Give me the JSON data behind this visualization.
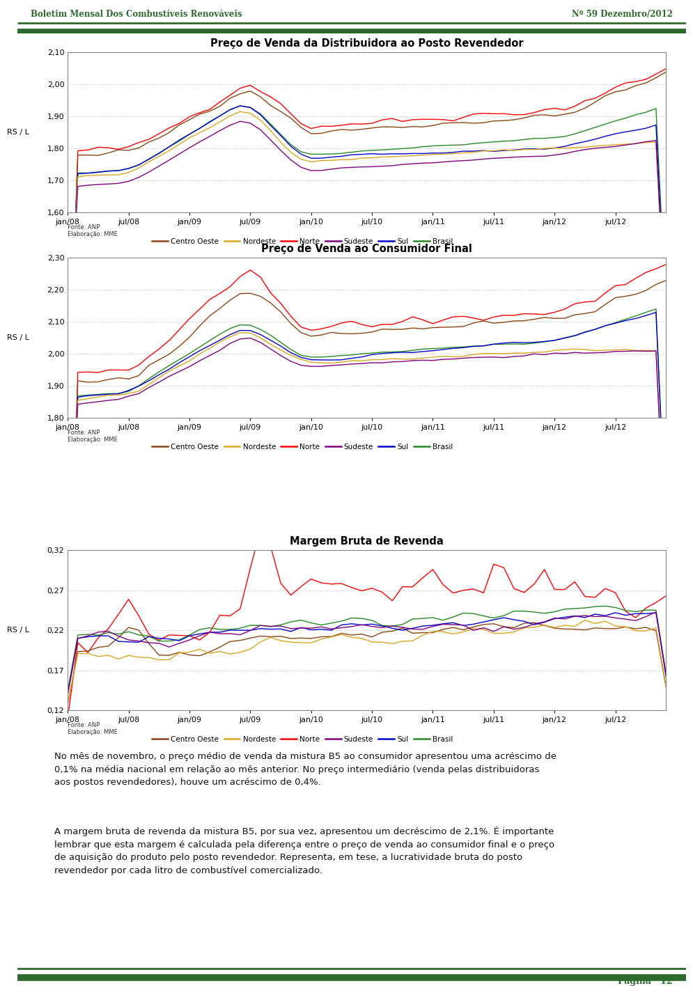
{
  "page_title_left": "Boletim Mensal Dos Combustíveis Renováveis",
  "page_title_right": "Nº 59 Dezembro/2012",
  "header_color": "#2d6a2d",
  "chart1_title": "Preço de Venda da Distribuidora ao Posto Revendedor",
  "chart2_title": "Preço de Venda ao Consumidor Final",
  "chart3_title": "Margem Bruta de Revenda",
  "ylabel": "RS / L",
  "chart1_ylim": [
    1.6,
    2.1
  ],
  "chart1_yticks": [
    1.6,
    1.7,
    1.8,
    1.9,
    2.0,
    2.1
  ],
  "chart2_ylim": [
    1.8,
    2.3
  ],
  "chart2_yticks": [
    1.8,
    1.9,
    2.0,
    2.1,
    2.2,
    2.3
  ],
  "chart3_ylim": [
    0.12,
    0.32
  ],
  "chart3_yticks": [
    0.12,
    0.17,
    0.22,
    0.27,
    0.32
  ],
  "xtick_labels": [
    "jan/08",
    "jul/08",
    "jan/09",
    "jul/09",
    "jan/10",
    "jul/10",
    "jan/11",
    "jul/11",
    "jan/12",
    "jul/12"
  ],
  "legend_labels": [
    "Centro Oeste",
    "Nordeste",
    "Norte",
    "Sudeste",
    "Sul",
    "Brasil"
  ],
  "legend_colors": [
    "#8B4513",
    "#DAA520",
    "#FF0000",
    "#800080",
    "#0000CD",
    "#228B22"
  ],
  "fonte_text": "Fonte: ANP\nElaboração: MME",
  "body_para1": "No mês de novembro, o preço médio de venda da mistura B5 ao consumidor apresentou uma acréscimo de 0,1% na média nacional em relação ao mês anterior. No preço intermediário (venda pelas distribuidoras aos postos revendedores), houve um acréscimo de 0,4%.",
  "body_para2": "A margem bruta de revenda da mistura B5, por sua vez, apresentou um decréscimo de 2,1%. É importante lembrar que esta margem é calculada pela diferença entre o preço de venda ao consumidor final e o preço de aquisição do produto pelo posto revendedor. Representa, em tese, a lucratividade bruta do posto revendedor por cada litro de combustível comercializado.",
  "footer_text": "Página   12",
  "background_color": "#FFFFFF",
  "grid_color": "#AAAAAA",
  "border_color": "#888888"
}
